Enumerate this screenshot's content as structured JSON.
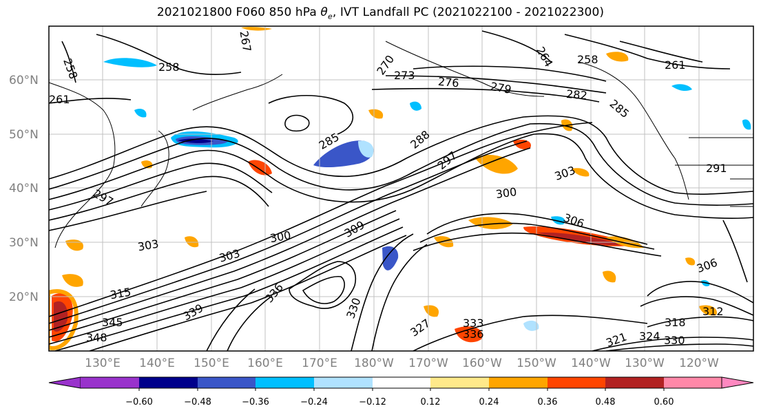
{
  "title_prefix": "2021021800 F060 850 hPa ",
  "title_symbol": "θ",
  "title_subscript": "e",
  "title_suffix": ", IVT Landfall PC (2021022100 - 2021022300)",
  "lat_labels": [
    "60°N",
    "50°N",
    "40°N",
    "30°N",
    "20°N"
  ],
  "lon_labels": [
    "130°E",
    "140°E",
    "150°E",
    "160°E",
    "170°E",
    "180°W",
    "170°W",
    "160°W",
    "150°W",
    "140°W",
    "130°W",
    "120°W"
  ],
  "contour_labels": [
    "258",
    "267",
    "270",
    "273",
    "276",
    "279",
    "264",
    "258",
    "261",
    "258",
    "261",
    "282",
    "285",
    "285",
    "288",
    "297",
    "303",
    "291",
    "300",
    "300",
    "303",
    "303",
    "306",
    "306",
    "309",
    "312",
    "315",
    "318",
    "321",
    "324",
    "327",
    "330",
    "330",
    "333",
    "336",
    "336",
    "339",
    "345",
    "348",
    "297"
  ],
  "colorbar": {
    "ticks": [
      "−0.60",
      "−0.48",
      "−0.36",
      "−0.24",
      "−0.12",
      "0.12",
      "0.24",
      "0.36",
      "0.48",
      "0.60"
    ],
    "colors": [
      "#9932cc",
      "#00008b",
      "#3a56c8",
      "#00bfff",
      "#b0e2ff",
      "#ffffff",
      "#ffe98a",
      "#ffa500",
      "#ff4500",
      "#b22222",
      "#ff88a8",
      "#ff88c0"
    ]
  }
}
